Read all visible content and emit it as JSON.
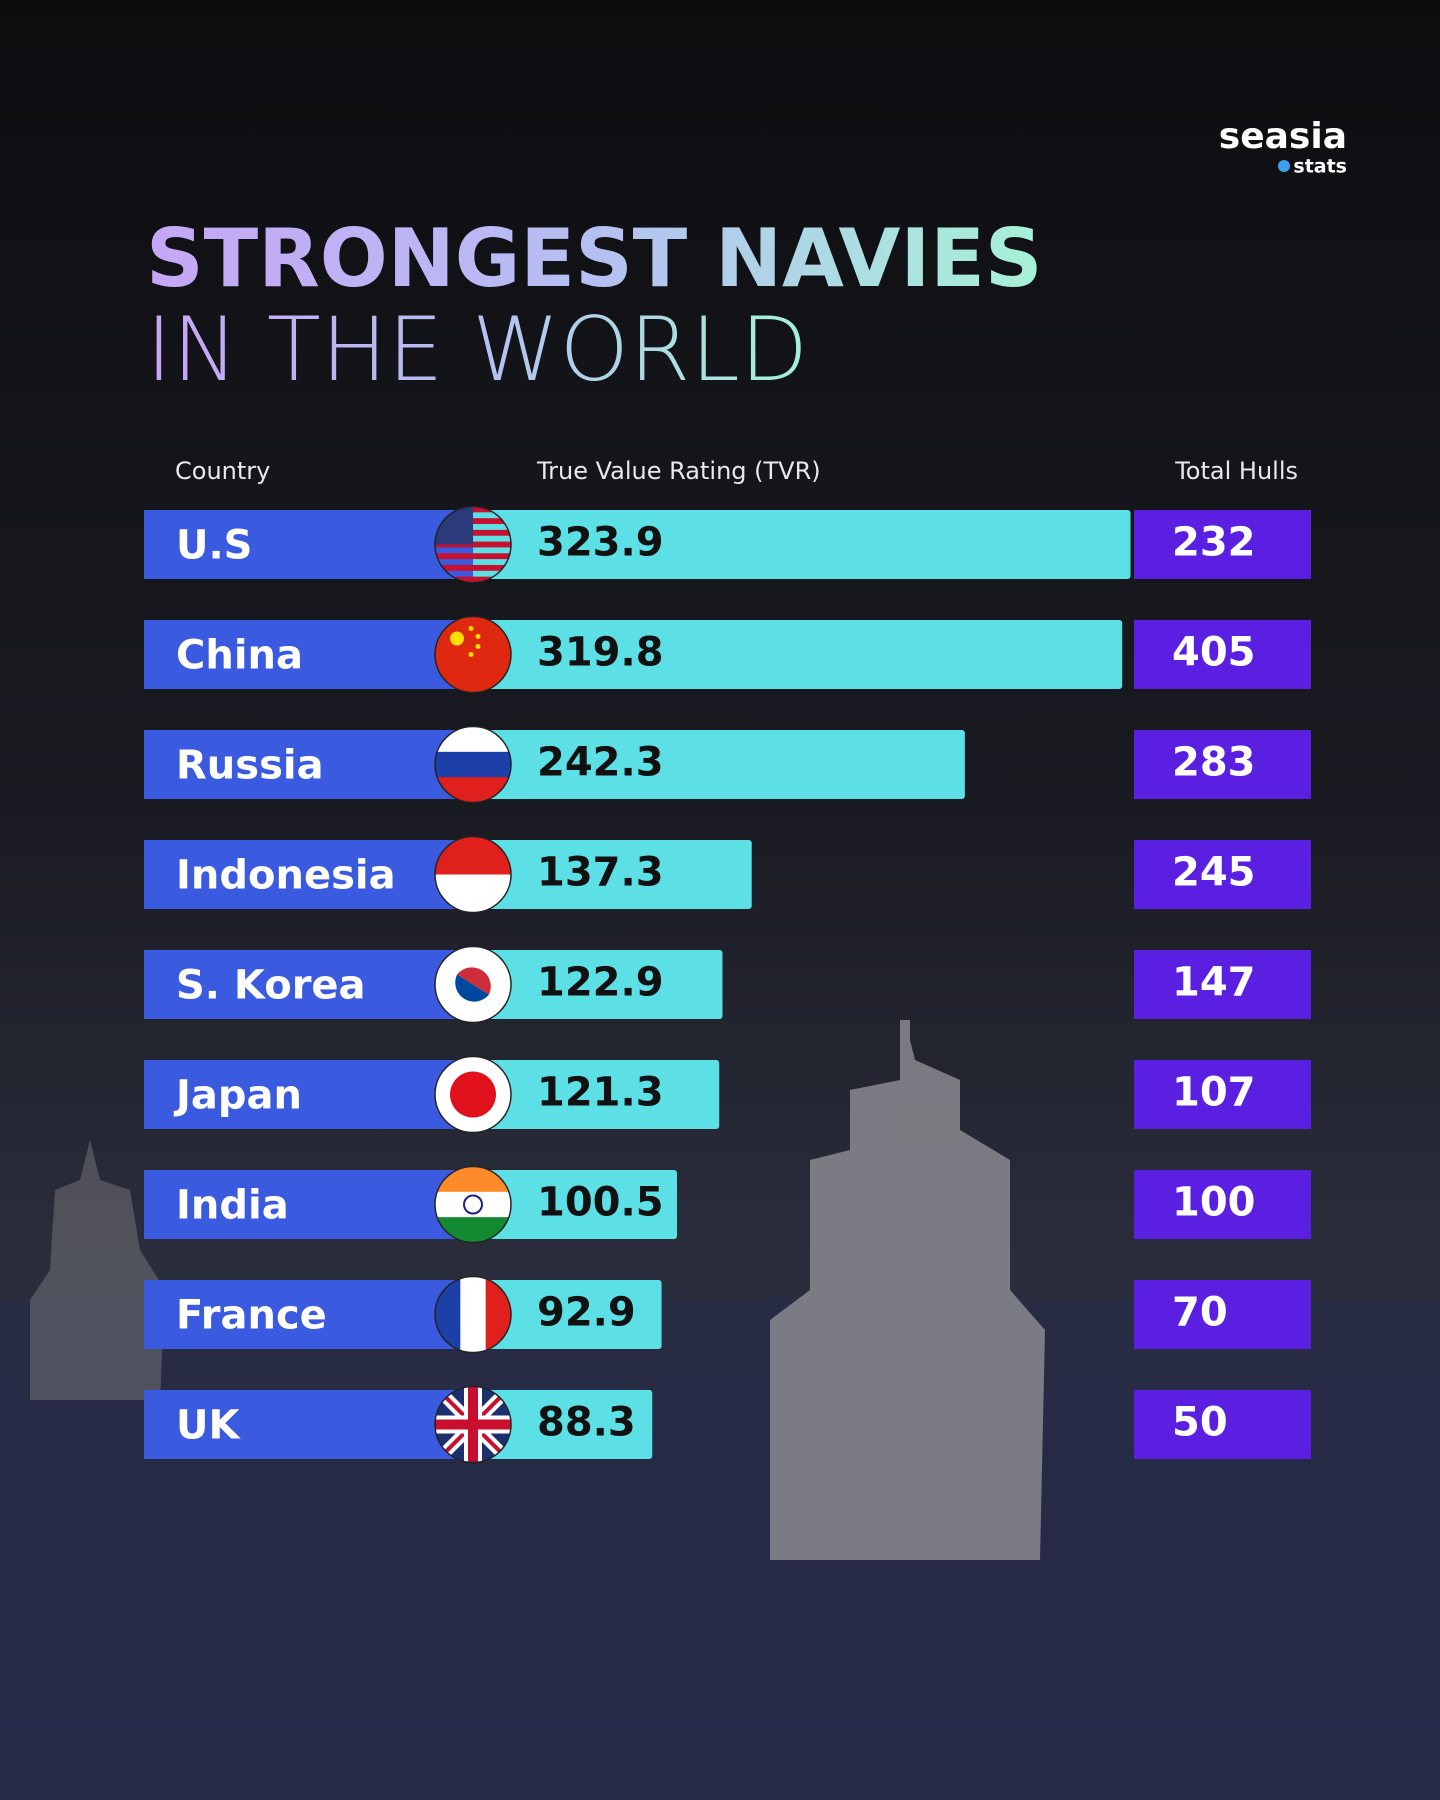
{
  "brand": {
    "name": "seasia",
    "tag": "stats"
  },
  "chart_data": {
    "type": "bar",
    "title": "STRONGEST NAVIES",
    "subtitle": "IN THE WORLD",
    "columns": [
      "Country",
      "True Value Rating (TVR)",
      "Total Hulls"
    ],
    "categories": [
      "U.S",
      "China",
      "Russia",
      "Indonesia",
      "S. Korea",
      "Japan",
      "India",
      "France",
      "UK"
    ],
    "series": [
      {
        "name": "True Value Rating (TVR)",
        "color": "#5ce0e6",
        "values": [
          323.9,
          319.8,
          242.3,
          137.3,
          122.9,
          121.3,
          100.5,
          92.9,
          88.3
        ]
      },
      {
        "name": "Total Hulls",
        "color": "#5a1fe0",
        "values": [
          232,
          405,
          283,
          245,
          147,
          107,
          100,
          70,
          50
        ]
      }
    ],
    "label_color": "#3a5ae0"
  }
}
